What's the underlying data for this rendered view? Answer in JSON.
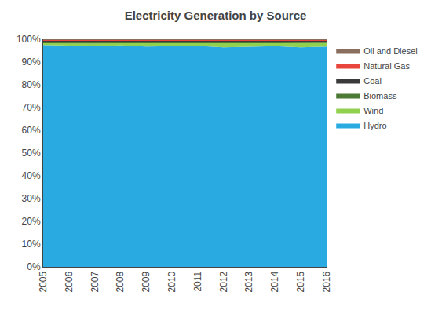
{
  "chart_data": {
    "type": "area",
    "title": "Electricity Generation by Source",
    "stacked": true,
    "grid": false,
    "legend": "right",
    "x": [
      2005,
      2006,
      2007,
      2008,
      2009,
      2010,
      2011,
      2012,
      2013,
      2014,
      2015,
      2016
    ],
    "xlim": [
      2005,
      2016
    ],
    "xticks": [
      2005,
      2006,
      2007,
      2008,
      2009,
      2010,
      2011,
      2012,
      2013,
      2014,
      2015,
      2016
    ],
    "ylim": [
      0,
      100
    ],
    "yticks": [
      {
        "value": 0,
        "label": "0%"
      },
      {
        "value": 10,
        "label": "10%"
      },
      {
        "value": 20,
        "label": "20%"
      },
      {
        "value": 30,
        "label": "30%"
      },
      {
        "value": 40,
        "label": "40%"
      },
      {
        "value": 50,
        "label": "50%"
      },
      {
        "value": 60,
        "label": "60%"
      },
      {
        "value": 70,
        "label": "70%"
      },
      {
        "value": 80,
        "label": "80%"
      },
      {
        "value": 90,
        "label": "90%"
      },
      {
        "value": 100,
        "label": "100%"
      }
    ],
    "series": [
      {
        "name": "Hydro",
        "color": "#29ABE2",
        "values": [
          97.5,
          97.2,
          97.0,
          97.3,
          96.8,
          97.0,
          97.1,
          96.5,
          96.8,
          97.0,
          96.5,
          96.8
        ]
      },
      {
        "name": "Wind",
        "color": "#92D050",
        "values": [
          0.8,
          1.0,
          1.2,
          1.0,
          1.4,
          1.3,
          1.2,
          1.7,
          1.5,
          1.3,
          1.8,
          1.6
        ]
      },
      {
        "name": "Biomass",
        "color": "#4C7A34",
        "values": [
          0.5,
          0.5,
          0.5,
          0.4,
          0.5,
          0.4,
          0.4,
          0.5,
          0.4,
          0.4,
          0.4,
          0.4
        ]
      },
      {
        "name": "Coal",
        "color": "#3A3A3A",
        "values": [
          0.5,
          0.6,
          0.6,
          0.6,
          0.6,
          0.6,
          0.6,
          0.6,
          0.6,
          0.6,
          0.6,
          0.5
        ]
      },
      {
        "name": "Natural Gas",
        "color": "#E8463C",
        "values": [
          0.35,
          0.35,
          0.35,
          0.35,
          0.35,
          0.35,
          0.35,
          0.35,
          0.35,
          0.35,
          0.35,
          0.35
        ]
      },
      {
        "name": "Oil and Diesel",
        "color": "#8B6F5E",
        "values": [
          0.35,
          0.35,
          0.35,
          0.35,
          0.35,
          0.35,
          0.35,
          0.35,
          0.35,
          0.35,
          0.35,
          0.35
        ]
      }
    ]
  }
}
